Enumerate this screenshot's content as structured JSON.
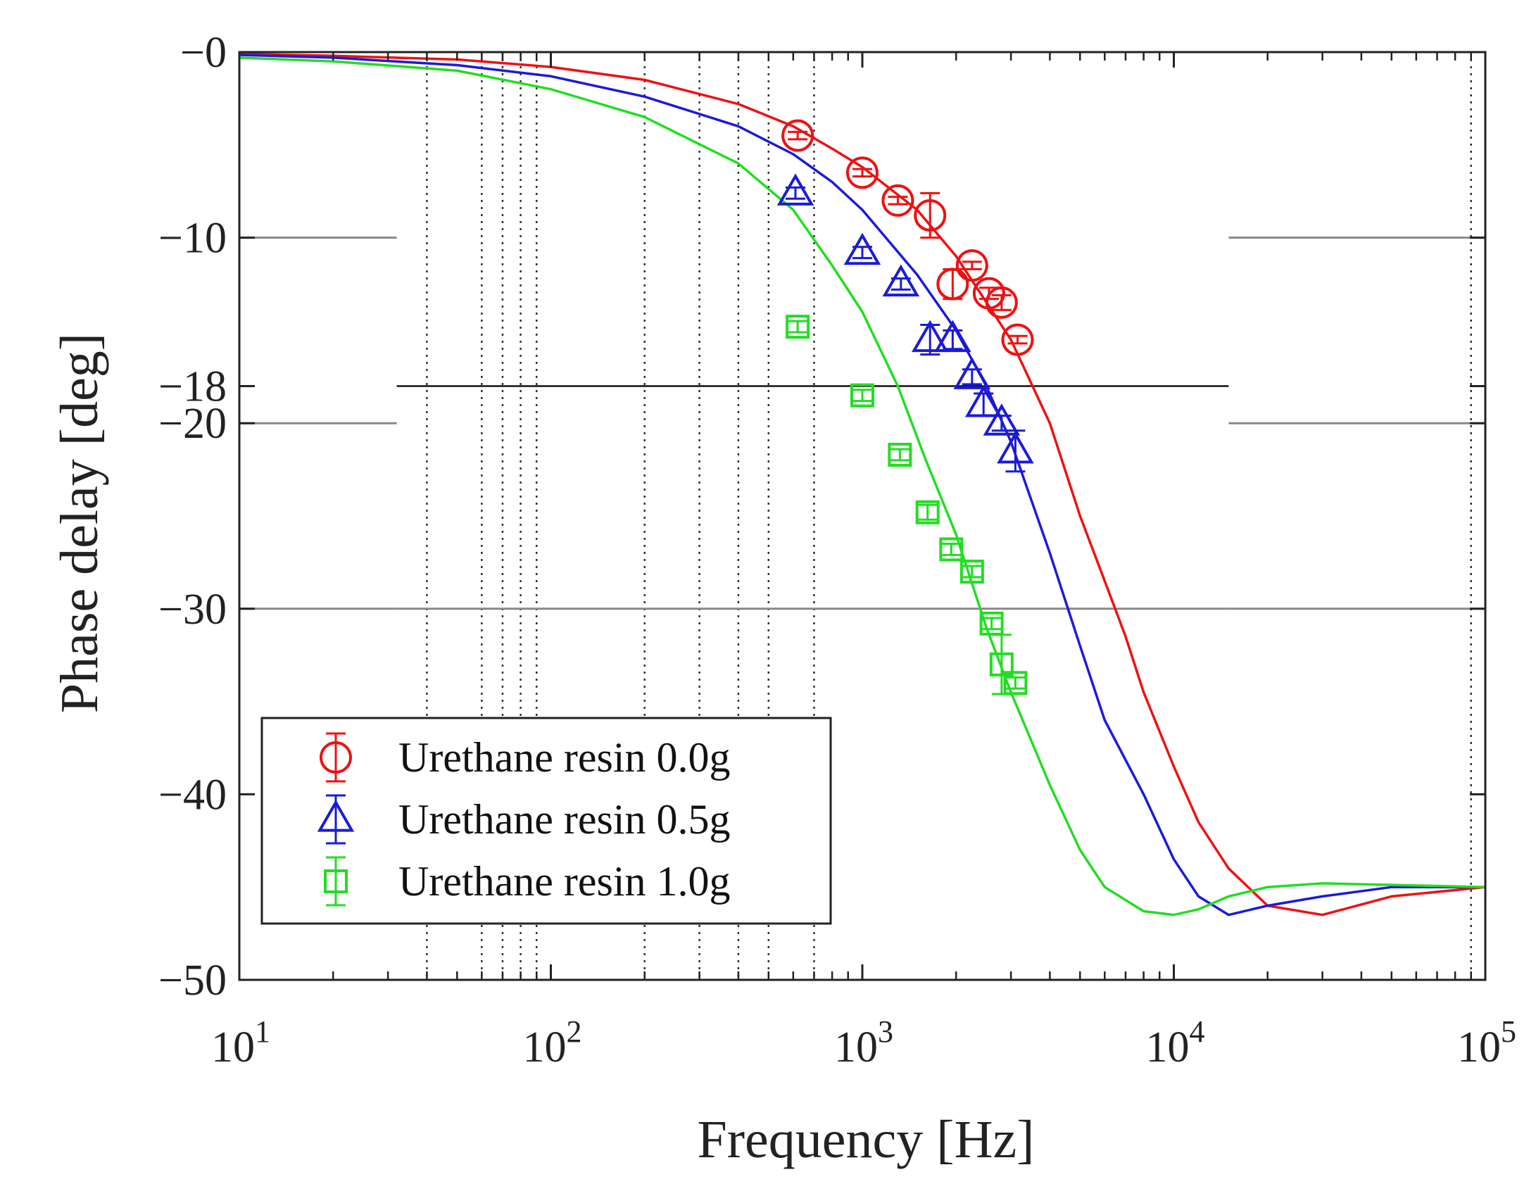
{
  "chart_data": {
    "type": "line",
    "title": "",
    "xlabel": "Frequency [Hz]",
    "ylabel": "Phase delay [deg]",
    "x_scale": "log",
    "xlim": [
      10,
      100000
    ],
    "ylim": [
      -50,
      0
    ],
    "x_ticks": [
      {
        "value": 10,
        "base": "10",
        "exp": "1"
      },
      {
        "value": 100,
        "base": "10",
        "exp": "2"
      },
      {
        "value": 1000,
        "base": "10",
        "exp": "3"
      },
      {
        "value": 10000,
        "base": "10",
        "exp": "4"
      },
      {
        "value": 100000,
        "base": "10",
        "exp": "5"
      }
    ],
    "y_ticks": [
      {
        "value": 0,
        "label": "−0"
      },
      {
        "value": -10,
        "label": "−10"
      },
      {
        "value": -18,
        "label": "−18"
      },
      {
        "value": -20,
        "label": "−20"
      },
      {
        "value": -30,
        "label": "−30"
      },
      {
        "value": -40,
        "label": "−40"
      },
      {
        "value": -50,
        "label": "−50"
      }
    ],
    "reference_line": {
      "y": -18,
      "x_range": [
        32,
        15000
      ]
    },
    "grid_y": [
      -10,
      -20,
      -30
    ],
    "grid_y_gap": [
      32,
      15000
    ],
    "grid_x_dotted": [
      40,
      60,
      70,
      80,
      90,
      200,
      300,
      400,
      500,
      700,
      90000
    ],
    "legend": {
      "position": "bottom-left"
    },
    "series": [
      {
        "name": "Urethane resin 0.0g",
        "color": "#ee1111",
        "marker": "circle",
        "fit_curve": [
          [
            10,
            -0.1
          ],
          [
            20,
            -0.2
          ],
          [
            50,
            -0.4
          ],
          [
            100,
            -0.8
          ],
          [
            200,
            -1.5
          ],
          [
            400,
            -2.8
          ],
          [
            600,
            -4.0
          ],
          [
            800,
            -5.2
          ],
          [
            1000,
            -6.2
          ],
          [
            1500,
            -8.5
          ],
          [
            2000,
            -11.0
          ],
          [
            3000,
            -15.5
          ],
          [
            4000,
            -20.0
          ],
          [
            5000,
            -25.0
          ],
          [
            6000,
            -28.5
          ],
          [
            7000,
            -31.5
          ],
          [
            8000,
            -34.5
          ],
          [
            10000,
            -38.5
          ],
          [
            12000,
            -41.5
          ],
          [
            15000,
            -44.0
          ],
          [
            20000,
            -46.0
          ],
          [
            30000,
            -46.5
          ],
          [
            50000,
            -45.5
          ],
          [
            100000,
            -45.0
          ]
        ],
        "points": [
          {
            "x": 620,
            "y": -4.5,
            "err": 0.2
          },
          {
            "x": 1000,
            "y": -6.5,
            "err": 0.2
          },
          {
            "x": 1300,
            "y": -8.0,
            "err": 0.2
          },
          {
            "x": 1650,
            "y": -8.8,
            "err": 1.2
          },
          {
            "x": 1950,
            "y": -12.5,
            "err": 0.8
          },
          {
            "x": 2250,
            "y": -11.5,
            "err": 0.2
          },
          {
            "x": 2550,
            "y": -13.0,
            "err": 0.3
          },
          {
            "x": 2800,
            "y": -13.5,
            "err": 0.4
          },
          {
            "x": 3150,
            "y": -15.5,
            "err": 0.2
          }
        ]
      },
      {
        "name": "Urethane resin 0.5g",
        "color": "#1a1adb",
        "marker": "triangle",
        "fit_curve": [
          [
            10,
            -0.15
          ],
          [
            20,
            -0.3
          ],
          [
            50,
            -0.7
          ],
          [
            100,
            -1.3
          ],
          [
            200,
            -2.4
          ],
          [
            400,
            -4.0
          ],
          [
            600,
            -5.5
          ],
          [
            800,
            -7.0
          ],
          [
            1000,
            -8.5
          ],
          [
            1500,
            -12.0
          ],
          [
            2000,
            -15.0
          ],
          [
            2500,
            -18.0
          ],
          [
            3000,
            -21.0
          ],
          [
            4000,
            -27.0
          ],
          [
            5000,
            -32.0
          ],
          [
            6000,
            -36.0
          ],
          [
            8000,
            -40.0
          ],
          [
            10000,
            -43.5
          ],
          [
            12000,
            -45.5
          ],
          [
            15000,
            -46.5
          ],
          [
            20000,
            -46.0
          ],
          [
            30000,
            -45.5
          ],
          [
            50000,
            -45.0
          ],
          [
            100000,
            -45.0
          ]
        ],
        "points": [
          {
            "x": 610,
            "y": -7.6,
            "err": 0.3
          },
          {
            "x": 1000,
            "y": -10.8,
            "err": 0.3
          },
          {
            "x": 1330,
            "y": -12.5,
            "err": 0.3
          },
          {
            "x": 1650,
            "y": -15.5,
            "err": 0.8
          },
          {
            "x": 1950,
            "y": -15.5,
            "err": 0.5
          },
          {
            "x": 2250,
            "y": -17.5,
            "err": 0.4
          },
          {
            "x": 2450,
            "y": -19.0,
            "err": 0.6
          },
          {
            "x": 2800,
            "y": -20.0,
            "err": 0.4
          },
          {
            "x": 3100,
            "y": -21.5,
            "err": 1.1
          }
        ]
      },
      {
        "name": "Urethane resin 1.0g",
        "color": "#22dd22",
        "marker": "square",
        "fit_curve": [
          [
            10,
            -0.3
          ],
          [
            20,
            -0.5
          ],
          [
            50,
            -1.0
          ],
          [
            100,
            -2.0
          ],
          [
            200,
            -3.5
          ],
          [
            400,
            -6.0
          ],
          [
            600,
            -8.5
          ],
          [
            800,
            -11.5
          ],
          [
            1000,
            -14.0
          ],
          [
            1300,
            -18.0
          ],
          [
            1600,
            -22.0
          ],
          [
            2000,
            -26.0
          ],
          [
            2500,
            -31.0
          ],
          [
            3000,
            -34.5
          ],
          [
            4000,
            -39.5
          ],
          [
            5000,
            -43.0
          ],
          [
            6000,
            -45.0
          ],
          [
            8000,
            -46.3
          ],
          [
            10000,
            -46.5
          ],
          [
            12000,
            -46.2
          ],
          [
            15000,
            -45.5
          ],
          [
            20000,
            -45.0
          ],
          [
            30000,
            -44.8
          ],
          [
            100000,
            -45.0
          ]
        ],
        "points": [
          {
            "x": 620,
            "y": -14.8,
            "err": 0.3
          },
          {
            "x": 1000,
            "y": -18.5,
            "err": 0.3
          },
          {
            "x": 1320,
            "y": -21.7,
            "err": 0.3
          },
          {
            "x": 1620,
            "y": -24.8,
            "err": 0.4
          },
          {
            "x": 1930,
            "y": -26.8,
            "err": 0.3
          },
          {
            "x": 2250,
            "y": -28.0,
            "err": 0.3
          },
          {
            "x": 2600,
            "y": -30.8,
            "err": 0.3
          },
          {
            "x": 2800,
            "y": -33.0,
            "err": 1.6
          },
          {
            "x": 3100,
            "y": -34.0,
            "err": 0.3
          }
        ]
      }
    ]
  }
}
